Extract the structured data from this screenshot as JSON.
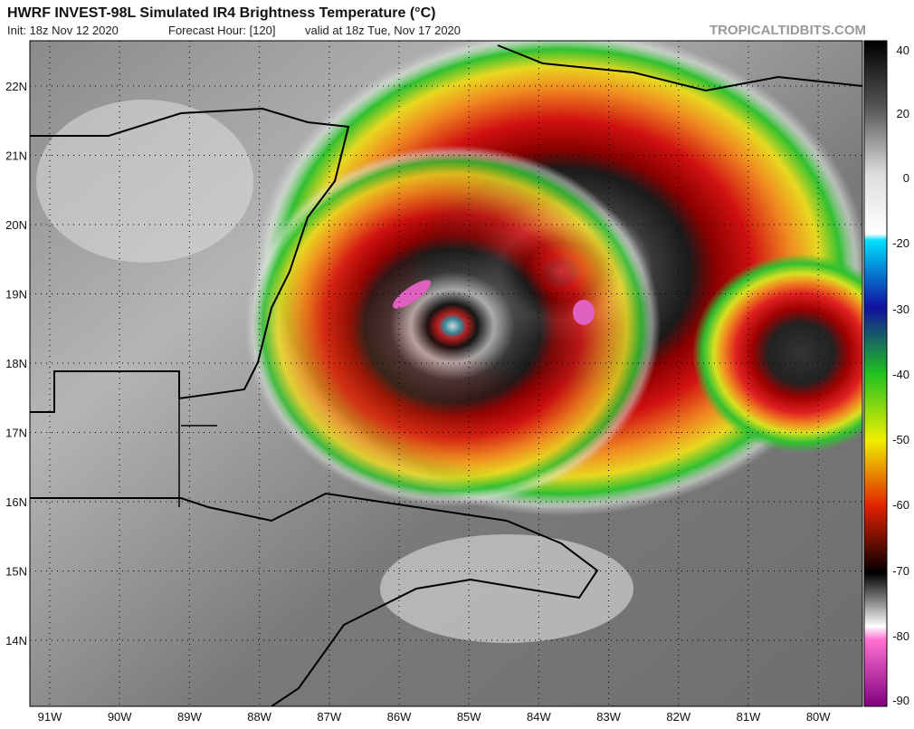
{
  "header": {
    "title": "HWRF INVEST-98L Simulated IR4 Brightness Temperature (°C)",
    "init": "Init: 18z Nov 12 2020",
    "forecast_hour": "Forecast Hour: [120]",
    "valid": "valid at 18z Tue, Nov 17 2020",
    "credit": "TROPICALTIDBITS.COM"
  },
  "map": {
    "lat_labels": [
      "22N",
      "21N",
      "20N",
      "19N",
      "18N",
      "17N",
      "16N",
      "15N",
      "14N"
    ],
    "lon_labels": [
      "91W",
      "90W",
      "89W",
      "88W",
      "87W",
      "86W",
      "85W",
      "84W",
      "83W",
      "82W",
      "81W",
      "80W"
    ]
  },
  "colorbar": {
    "ticks": [
      40,
      20,
      0,
      -20,
      -30,
      -40,
      -50,
      -60,
      -70,
      -80,
      -90
    ]
  }
}
